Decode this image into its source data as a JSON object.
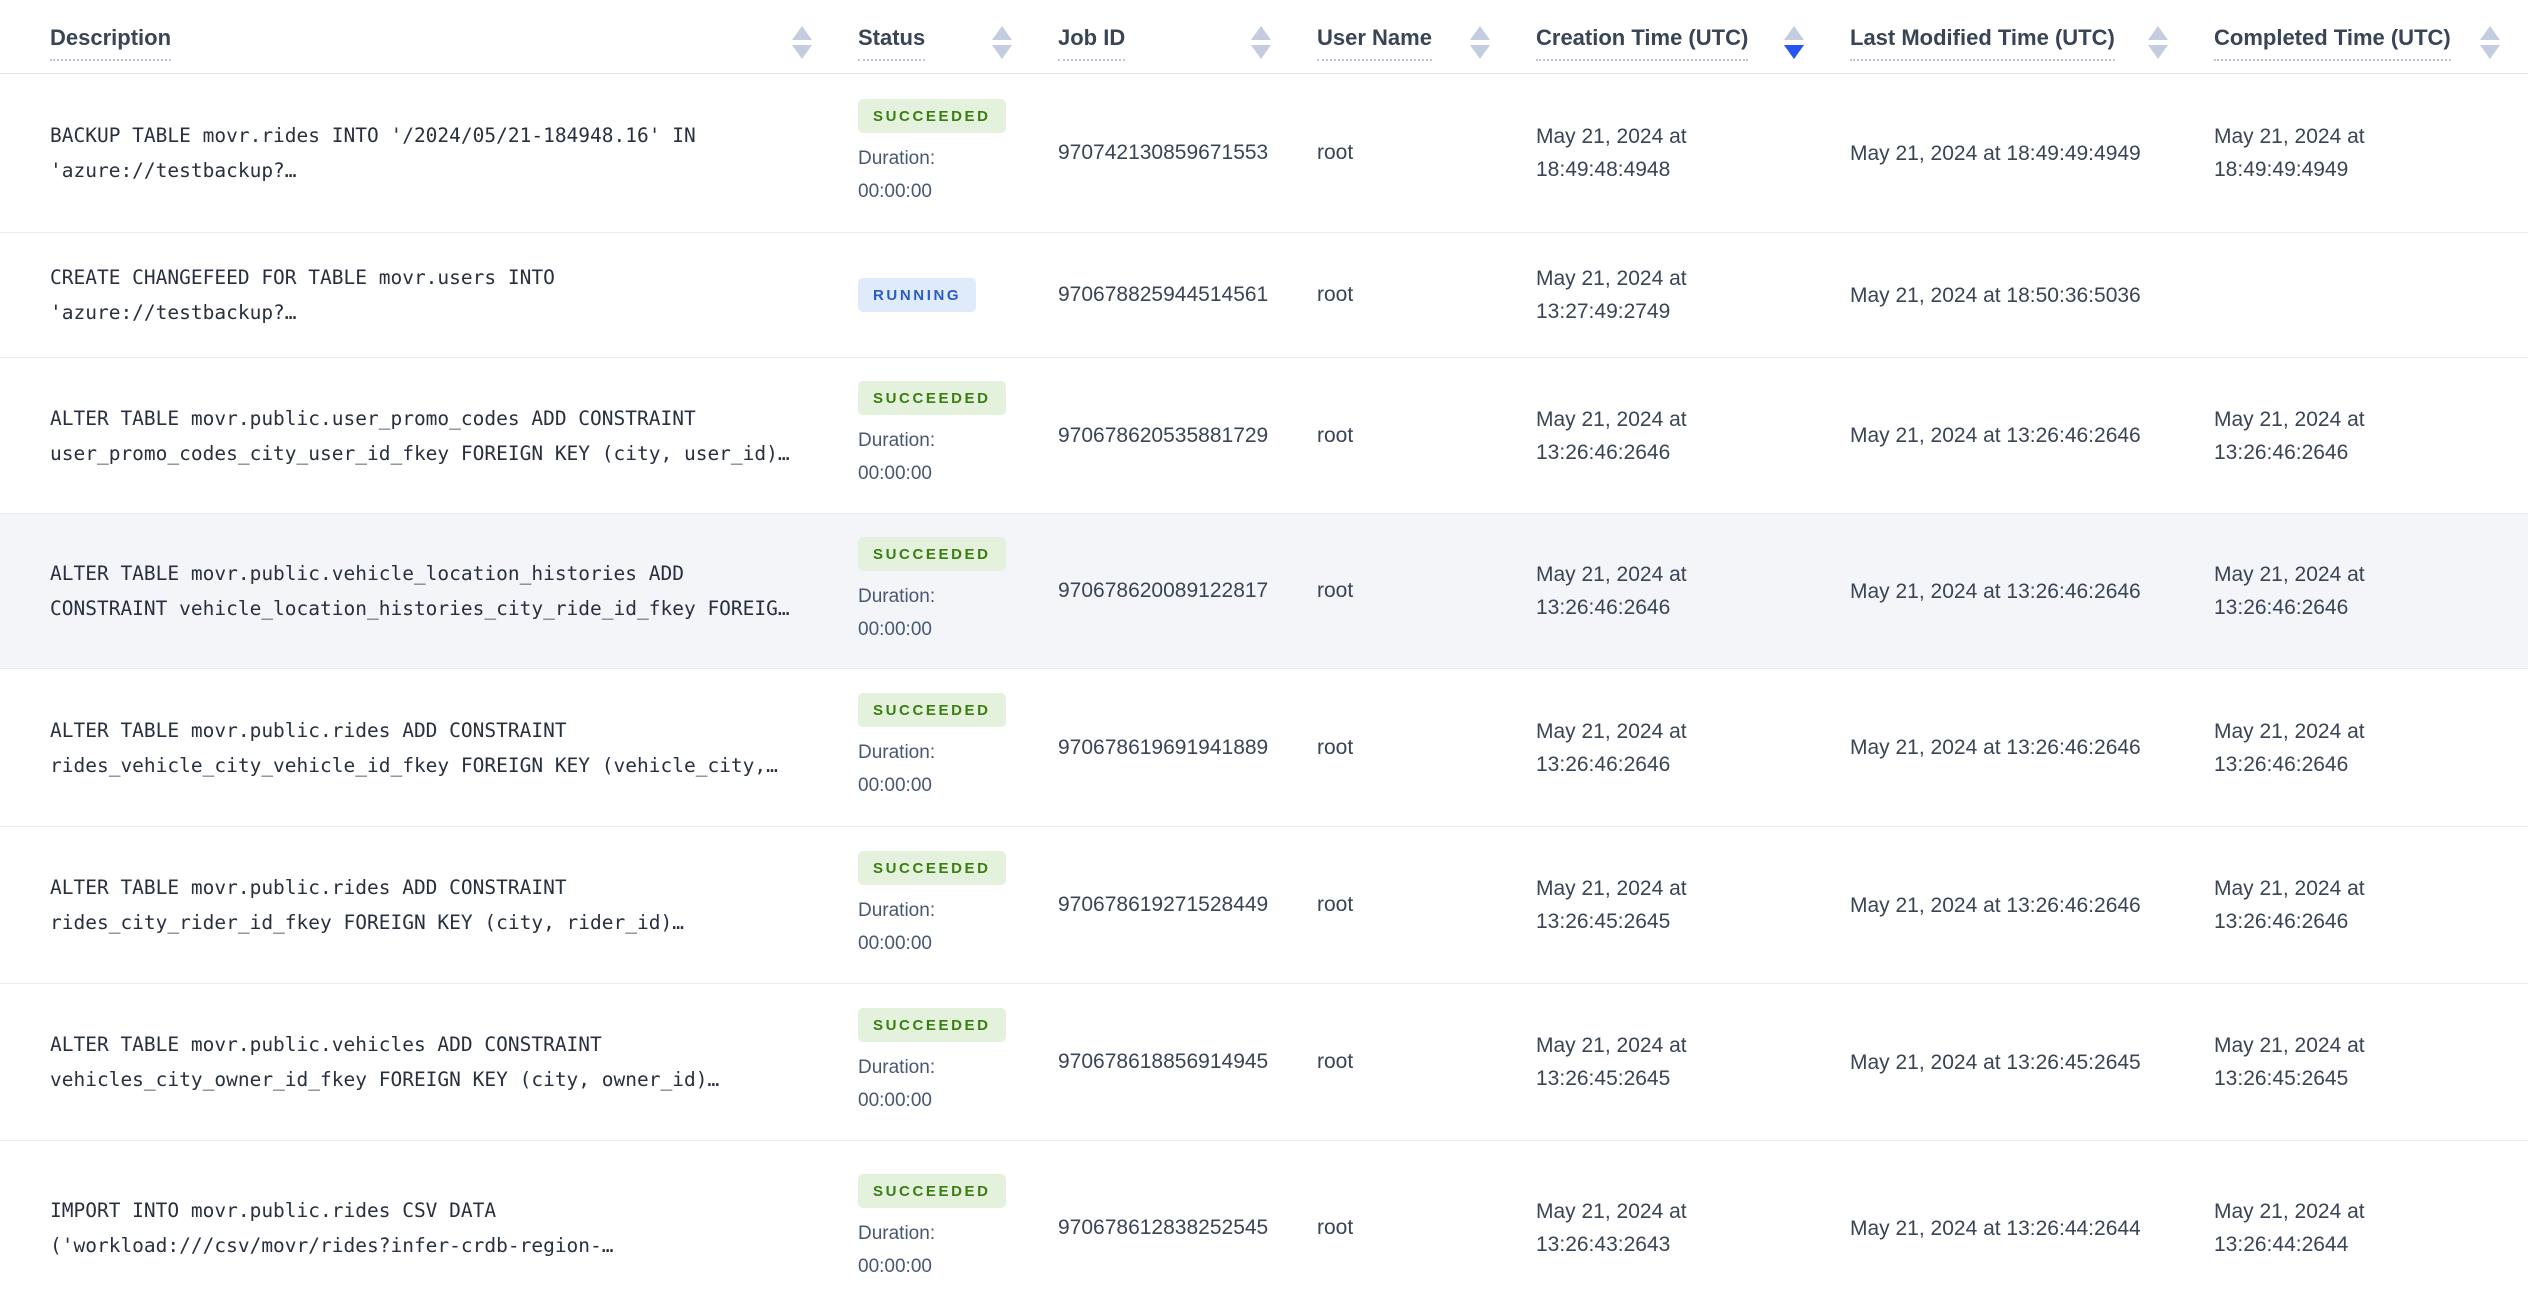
{
  "table": {
    "columns": [
      {
        "label": "Description",
        "sort": "none"
      },
      {
        "label": "Status",
        "sort": "none"
      },
      {
        "label": "Job ID",
        "sort": "none"
      },
      {
        "label": "User Name",
        "sort": "none"
      },
      {
        "label": "Creation Time (UTC)",
        "sort": "desc"
      },
      {
        "label": "Last Modified Time (UTC)",
        "sort": "none"
      },
      {
        "label": "Completed Time (UTC)",
        "sort": "none"
      }
    ],
    "rows": [
      {
        "description": "BACKUP TABLE movr.rides INTO '/2024/05/21-184948.16' IN\n'azure://testbackup?…",
        "status": "SUCCEEDED",
        "duration": "Duration:\n00:00:00",
        "job_id": "970742130859671553",
        "user_name": "root",
        "creation_time": "May 21, 2024 at\n18:49:48:4948",
        "last_modified_time": "May 21, 2024 at 18:49:49:4949",
        "completed_time": "May 21, 2024 at\n18:49:49:4949",
        "highlighted": false
      },
      {
        "description": "CREATE CHANGEFEED FOR TABLE movr.users INTO\n'azure://testbackup?…",
        "status": "RUNNING",
        "duration": "",
        "job_id": "970678825944514561",
        "user_name": "root",
        "creation_time": "May 21, 2024 at\n13:27:49:2749",
        "last_modified_time": "May 21, 2024 at 18:50:36:5036",
        "completed_time": "",
        "highlighted": false
      },
      {
        "description": "ALTER TABLE movr.public.user_promo_codes ADD CONSTRAINT\nuser_promo_codes_city_user_id_fkey FOREIGN KEY (city, user_id)…",
        "status": "SUCCEEDED",
        "duration": "Duration:\n00:00:00",
        "job_id": "970678620535881729",
        "user_name": "root",
        "creation_time": "May 21, 2024 at\n13:26:46:2646",
        "last_modified_time": "May 21, 2024 at 13:26:46:2646",
        "completed_time": "May 21, 2024 at\n13:26:46:2646",
        "highlighted": false
      },
      {
        "description": "ALTER TABLE movr.public.vehicle_location_histories ADD\nCONSTRAINT vehicle_location_histories_city_ride_id_fkey FOREIG…",
        "status": "SUCCEEDED",
        "duration": "Duration:\n00:00:00",
        "job_id": "970678620089122817",
        "user_name": "root",
        "creation_time": "May 21, 2024 at\n13:26:46:2646",
        "last_modified_time": "May 21, 2024 at 13:26:46:2646",
        "completed_time": "May 21, 2024 at\n13:26:46:2646",
        "highlighted": true
      },
      {
        "description": "ALTER TABLE movr.public.rides ADD CONSTRAINT\nrides_vehicle_city_vehicle_id_fkey FOREIGN KEY (vehicle_city,…",
        "status": "SUCCEEDED",
        "duration": "Duration:\n00:00:00",
        "job_id": "970678619691941889",
        "user_name": "root",
        "creation_time": "May 21, 2024 at\n13:26:46:2646",
        "last_modified_time": "May 21, 2024 at 13:26:46:2646",
        "completed_time": "May 21, 2024 at\n13:26:46:2646",
        "highlighted": false
      },
      {
        "description": "ALTER TABLE movr.public.rides ADD CONSTRAINT\nrides_city_rider_id_fkey FOREIGN KEY (city, rider_id)…",
        "status": "SUCCEEDED",
        "duration": "Duration:\n00:00:00",
        "job_id": "970678619271528449",
        "user_name": "root",
        "creation_time": "May 21, 2024 at\n13:26:45:2645",
        "last_modified_time": "May 21, 2024 at 13:26:46:2646",
        "completed_time": "May 21, 2024 at\n13:26:46:2646",
        "highlighted": false
      },
      {
        "description": "ALTER TABLE movr.public.vehicles ADD CONSTRAINT\nvehicles_city_owner_id_fkey FOREIGN KEY (city, owner_id)…",
        "status": "SUCCEEDED",
        "duration": "Duration:\n00:00:00",
        "job_id": "970678618856914945",
        "user_name": "root",
        "creation_time": "May 21, 2024 at\n13:26:45:2645",
        "last_modified_time": "May 21, 2024 at 13:26:45:2645",
        "completed_time": "May 21, 2024 at\n13:26:45:2645",
        "highlighted": false
      },
      {
        "description": "IMPORT INTO movr.public.rides CSV DATA\n('workload:///csv/movr/rides?infer-crdb-region-…",
        "status": "SUCCEEDED",
        "duration": "Duration:\n00:00:00",
        "job_id": "970678612838252545",
        "user_name": "root",
        "creation_time": "May 21, 2024 at\n13:26:43:2643",
        "last_modified_time": "May 21, 2024 at 13:26:44:2644",
        "completed_time": "May 21, 2024 at\n13:26:44:2644",
        "highlighted": false
      }
    ]
  },
  "colors": {
    "sort_active": "#2653f1",
    "sort_inactive": "#c4cce0",
    "succeeded_text": "#3a7e12",
    "succeeded_bg": "#e4f2dd",
    "running_text": "#2a5cc5",
    "running_bg": "#dfeafa",
    "header_text": "#394455",
    "body_text": "#394455",
    "duration_text": "#475872",
    "row_border": "#e7ecf3",
    "row_highlight_bg": "#f4f5f9"
  }
}
